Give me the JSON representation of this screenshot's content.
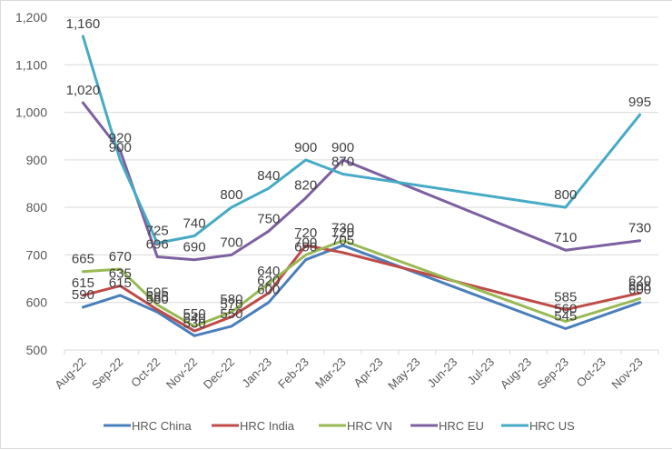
{
  "chart_data": {
    "type": "line",
    "title": "",
    "xlabel": "",
    "ylabel": "",
    "ylim": [
      500,
      1200
    ],
    "yticks": [
      500,
      600,
      700,
      800,
      900,
      1000,
      1100,
      1200
    ],
    "ytick_labels": [
      "500",
      "600",
      "700",
      "800",
      "900",
      "1,000",
      "1,100",
      "1,200"
    ],
    "grid": true,
    "legend_position": "bottom",
    "categories": [
      "Aug-22",
      "Sep-22",
      "Oct-22",
      "Nov-22",
      "Dec-22",
      "Jan-23",
      "Feb-23",
      "Mar-23",
      "Apr-23",
      "May-23",
      "Jun-23",
      "Jul-23",
      "Aug-23",
      "Sep-23",
      "Oct-23",
      "Nov-23"
    ],
    "series": [
      {
        "name": "HRC China",
        "color": "#4A7EBB",
        "values": [
          590,
          615,
          580,
          530,
          550,
          600,
          690,
          720,
          null,
          null,
          null,
          null,
          null,
          545,
          null,
          600
        ]
      },
      {
        "name": "HRC India",
        "color": "#BE4B48",
        "values": [
          615,
          635,
          585,
          540,
          570,
          620,
          720,
          705,
          null,
          null,
          null,
          null,
          null,
          585,
          null,
          620
        ]
      },
      {
        "name": "HRC VN",
        "color": "#98B954",
        "values": [
          665,
          670,
          595,
          550,
          580,
          640,
          700,
          730,
          null,
          null,
          null,
          null,
          null,
          560,
          null,
          608
        ]
      },
      {
        "name": "HRC EU",
        "color": "#7D60A0",
        "values": [
          1020,
          920,
          696,
          690,
          700,
          750,
          820,
          900,
          null,
          null,
          null,
          null,
          null,
          710,
          null,
          730
        ]
      },
      {
        "name": "HRC US",
        "color": "#46AAC5",
        "values": [
          1160,
          900,
          725,
          740,
          800,
          840,
          900,
          870,
          null,
          null,
          null,
          null,
          null,
          800,
          null,
          995
        ]
      }
    ]
  }
}
